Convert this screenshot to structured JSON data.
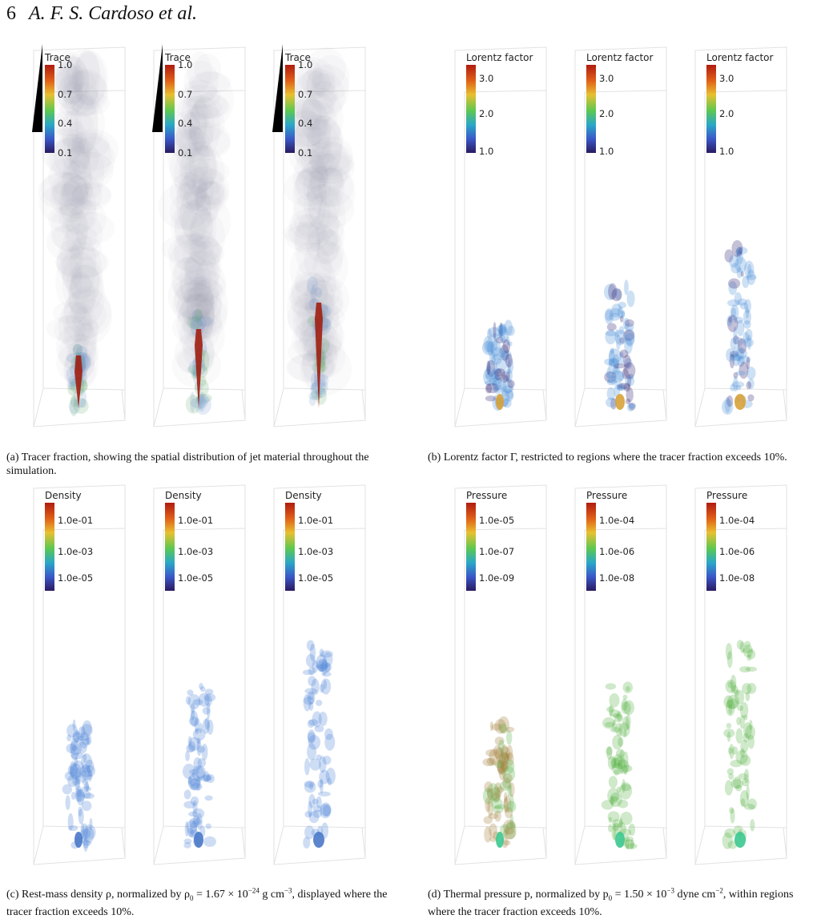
{
  "header": {
    "page_number": "6",
    "authors": "A. F. S. Cardoso et al."
  },
  "colors": {
    "trace": "#a11e10",
    "lorentz_low": "#2c1d6e",
    "lorentz_mid": "#4a8ed9",
    "lorentz_core": "#d8a23a",
    "density": "#4f84d6",
    "pressure_green": "#52b040",
    "pressure_brown": "#9e7a32"
  },
  "figures": [
    {
      "id": "a",
      "colorbar_title": "Trace",
      "ticks": [
        "1.0",
        "0.7",
        "0.4",
        "0.1"
      ],
      "caption": "(a) Tracer fraction, showing the spatial distribution of jet material throughout the simulation."
    },
    {
      "id": "b",
      "colorbar_title": "Lorentz factor",
      "ticks": [
        "3.0",
        "2.0",
        "1.0"
      ],
      "caption": "(b) Lorentz factor Γ, restricted to regions where the tracer fraction exceeds 10%."
    },
    {
      "id": "c",
      "colorbar_title": "Density",
      "ticks": [
        "1.0e-01",
        "1.0e-03",
        "1.0e-05"
      ],
      "caption_pre": "(c) Rest-mass density ρ, normalized by ρ",
      "caption_sub": "0",
      "caption_eq": " = 1.67 × 10",
      "caption_exp": "−24",
      "caption_post": " g cm",
      "caption_exp2": "−3",
      "caption_end": ", displayed where the tracer fraction exceeds 10%."
    },
    {
      "id": "d",
      "colorbar_title": "Pressure",
      "ticks_1": [
        "1.0e-05",
        "1.0e-07",
        "1.0e-09"
      ],
      "ticks_2": [
        "1.0e-04",
        "1.0e-06",
        "1.0e-08"
      ],
      "caption_pre": "(d) Thermal pressure p, normalized by p",
      "caption_sub": "0",
      "caption_eq": " = 1.50 × 10",
      "caption_exp": "−3",
      "caption_post": " dyne cm",
      "caption_exp2": "−2",
      "caption_end": ", within regions where the tracer fraction exceeds 10%."
    }
  ]
}
